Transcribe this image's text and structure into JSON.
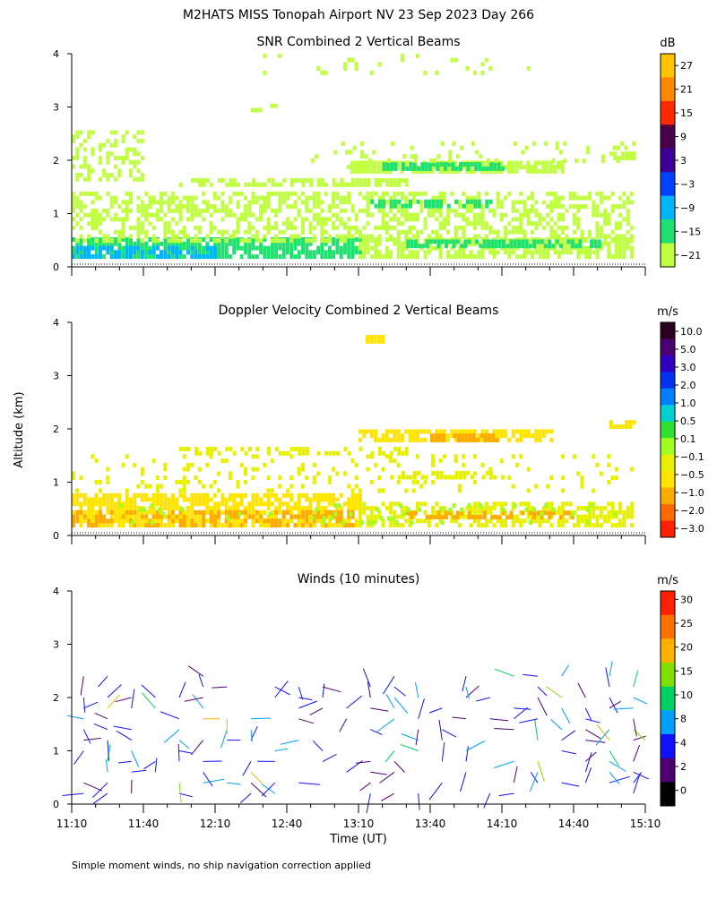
{
  "page_title": "M2HATS MISS Tonopah Airport NV  23 Sep 2023 Day 266",
  "ylabel": "Altitude (km)",
  "xlabel": "Time (UT)",
  "footnote": "Simple moment winds, no ship navigation correction applied",
  "chart_data": [
    {
      "type": "heatmap",
      "id": "snr",
      "title": "SNR Combined 2 Vertical Beams",
      "colorbar_unit": "dB",
      "colorbar_ticks": [
        "27",
        "21",
        "15",
        "9",
        "3",
        "−3",
        "−9",
        "−15",
        "−21"
      ],
      "colorbar_colors": [
        "#ffc400",
        "#ff8800",
        "#ff2a00",
        "#4a004a",
        "#3c0096",
        "#0040ff",
        "#00b4ff",
        "#20e070",
        "#c0ff40"
      ],
      "x_ticks": [
        "11:10",
        "11:40",
        "12:10",
        "12:40",
        "13:10",
        "13:40",
        "14:10",
        "14:40",
        "15:10"
      ],
      "y_ticks": [
        "0",
        "1",
        "2",
        "3",
        "4"
      ],
      "xlim_minutes": [
        0,
        240
      ],
      "ylim_km": [
        0,
        4
      ],
      "layers": [
        {
          "y0": 0.15,
          "y1": 0.55,
          "t0": 0,
          "t1": 120,
          "color": "#20e070",
          "density": 0.8
        },
        {
          "y0": 0.15,
          "y1": 0.35,
          "t0": 0,
          "t1": 60,
          "color": "#00b4ff",
          "density": 0.55
        },
        {
          "y0": 0.45,
          "y1": 1.35,
          "t0": 0,
          "t1": 235,
          "color": "#c0ff40",
          "density": 0.5
        },
        {
          "y0": 0.15,
          "y1": 0.55,
          "t0": 120,
          "t1": 235,
          "color": "#c0ff40",
          "density": 0.7
        },
        {
          "y0": 0.35,
          "y1": 0.5,
          "t0": 140,
          "t1": 220,
          "color": "#20e070",
          "density": 0.75
        },
        {
          "y0": 1.5,
          "y1": 1.62,
          "t0": 45,
          "t1": 140,
          "color": "#c0ff40",
          "density": 0.65
        },
        {
          "y0": 1.75,
          "y1": 1.95,
          "t0": 115,
          "t1": 205,
          "color": "#c0ff40",
          "density": 0.8
        },
        {
          "y0": 1.8,
          "y1": 1.9,
          "t0": 130,
          "t1": 180,
          "color": "#20e070",
          "density": 0.85
        },
        {
          "y0": 1.1,
          "y1": 1.2,
          "t0": 125,
          "t1": 175,
          "color": "#20e070",
          "density": 0.6
        },
        {
          "y0": 1.6,
          "y1": 2.5,
          "t0": 0,
          "t1": 30,
          "color": "#c0ff40",
          "density": 0.35
        },
        {
          "y0": 1.95,
          "y1": 2.3,
          "t0": 100,
          "t1": 235,
          "color": "#c0ff40",
          "density": 0.15
        },
        {
          "y0": 2.0,
          "y1": 2.15,
          "t0": 225,
          "t1": 235,
          "color": "#c0ff40",
          "density": 0.8
        },
        {
          "y0": 3.6,
          "y1": 4.0,
          "t0": 80,
          "t1": 200,
          "color": "#c0ff40",
          "density": 0.06
        },
        {
          "y0": 2.9,
          "y1": 3.0,
          "t0": 75,
          "t1": 85,
          "color": "#c0ff40",
          "density": 0.6
        }
      ]
    },
    {
      "type": "heatmap",
      "id": "doppler",
      "title": "Doppler Velocity Combined 2 Vertical Beams",
      "colorbar_unit": "m/s",
      "colorbar_ticks": [
        "10.0",
        "5.0",
        "3.0",
        "2.0",
        "1.0",
        "0.5",
        "0.1",
        "−0.1",
        "−0.5",
        "−1.0",
        "−2.0",
        "−3.0"
      ],
      "colorbar_colors": [
        "#2a0020",
        "#4a0070",
        "#3000c0",
        "#0030f0",
        "#0080ff",
        "#00d0d0",
        "#30e030",
        "#a0ff20",
        "#e6f000",
        "#ffe400",
        "#ffaa00",
        "#ff6a00",
        "#ff2000"
      ],
      "x_ticks": [
        "11:10",
        "11:40",
        "12:10",
        "12:40",
        "13:10",
        "13:40",
        "14:10",
        "14:40",
        "15:10"
      ],
      "y_ticks": [
        "0",
        "1",
        "2",
        "3",
        "4"
      ],
      "xlim_minutes": [
        0,
        240
      ],
      "ylim_km": [
        0,
        4
      ],
      "layers": [
        {
          "y0": 0.15,
          "y1": 0.75,
          "t0": 0,
          "t1": 120,
          "color": "#ffe400",
          "density": 0.75
        },
        {
          "y0": 0.15,
          "y1": 0.45,
          "t0": 0,
          "t1": 120,
          "color": "#ffaa00",
          "density": 0.45
        },
        {
          "y0": 0.15,
          "y1": 0.6,
          "t0": 120,
          "t1": 235,
          "color": "#e6f000",
          "density": 0.55
        },
        {
          "y0": 0.3,
          "y1": 0.45,
          "t0": 140,
          "t1": 210,
          "color": "#ffaa00",
          "density": 0.5
        },
        {
          "y0": 0.2,
          "y1": 0.6,
          "t0": 20,
          "t1": 230,
          "color": "#a0ff20",
          "density": 0.08
        },
        {
          "y0": 0.8,
          "y1": 1.5,
          "t0": 0,
          "t1": 235,
          "color": "#e6f000",
          "density": 0.14
        },
        {
          "y0": 1.5,
          "y1": 1.62,
          "t0": 45,
          "t1": 140,
          "color": "#e6f000",
          "density": 0.45
        },
        {
          "y0": 1.75,
          "y1": 1.95,
          "t0": 120,
          "t1": 200,
          "color": "#ffe400",
          "density": 0.75
        },
        {
          "y0": 1.75,
          "y1": 1.85,
          "t0": 150,
          "t1": 180,
          "color": "#ffaa00",
          "density": 0.7
        },
        {
          "y0": 1.05,
          "y1": 1.15,
          "t0": 130,
          "t1": 180,
          "color": "#e6f000",
          "density": 0.5
        },
        {
          "y0": 2.0,
          "y1": 2.1,
          "t0": 225,
          "t1": 235,
          "color": "#ffe400",
          "density": 0.8
        },
        {
          "y0": 3.6,
          "y1": 3.7,
          "t0": 123,
          "t1": 130,
          "color": "#ffe400",
          "density": 0.9
        }
      ]
    },
    {
      "type": "barbs",
      "id": "winds",
      "title": "Winds (10 minutes)",
      "colorbar_unit": "m/s",
      "colorbar_ticks": [
        "30",
        "25",
        "20",
        "15",
        "10",
        "8",
        "4",
        "2",
        "0"
      ],
      "colorbar_colors": [
        "#ff2000",
        "#ff7000",
        "#ffb000",
        "#80e000",
        "#00d060",
        "#00a0ff",
        "#1010ff",
        "#500070",
        "#000000"
      ],
      "x_ticks": [
        "11:10",
        "11:40",
        "12:10",
        "12:40",
        "13:10",
        "13:40",
        "14:10",
        "14:40",
        "15:10"
      ],
      "y_ticks": [
        "0",
        "1",
        "2",
        "3",
        "4"
      ],
      "xlim_minutes": [
        0,
        240
      ],
      "ylim_km": [
        0,
        4
      ],
      "columns_every_minutes": 10,
      "column_offset_minutes": 5,
      "typical_speed_ms": 5
    }
  ]
}
